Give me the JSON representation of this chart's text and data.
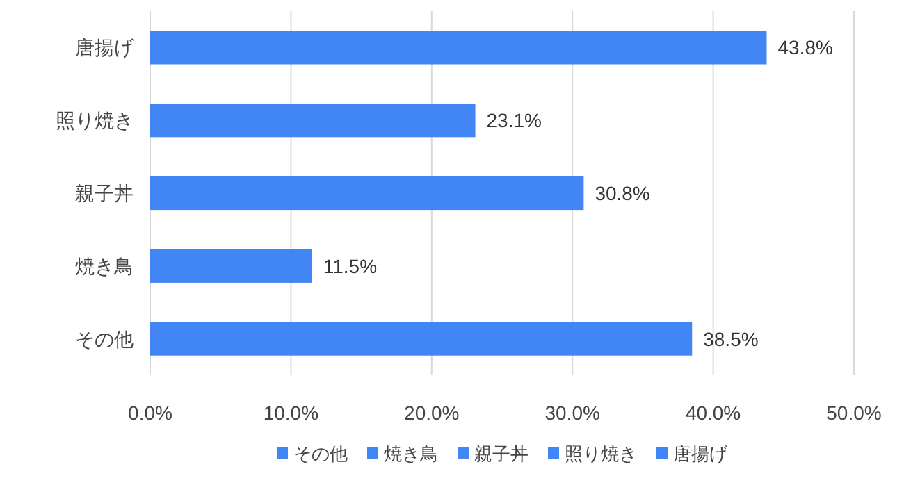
{
  "chart_data": {
    "type": "bar",
    "orientation": "horizontal",
    "categories": [
      "唐揚げ",
      "照り焼き",
      "親子丼",
      "焼き鳥",
      "その他"
    ],
    "series": [
      {
        "name": "その他",
        "color": "#4285f4",
        "values": [
          null,
          null,
          null,
          null,
          38.5
        ],
        "value_labels": [
          null,
          null,
          null,
          null,
          "38.5%"
        ]
      },
      {
        "name": "焼き鳥",
        "color": "#4285f4",
        "values": [
          null,
          null,
          null,
          11.5,
          null
        ],
        "value_labels": [
          null,
          null,
          null,
          "11.5%",
          null
        ]
      },
      {
        "name": "親子丼",
        "color": "#4285f4",
        "values": [
          null,
          null,
          30.8,
          null,
          null
        ],
        "value_labels": [
          null,
          null,
          "30.8%",
          null,
          null
        ]
      },
      {
        "name": "照り焼き",
        "color": "#4285f4",
        "values": [
          null,
          23.1,
          null,
          null,
          null
        ],
        "value_labels": [
          null,
          "23.1%",
          null,
          null,
          null
        ]
      },
      {
        "name": "唐揚げ",
        "color": "#4285f4",
        "values": [
          43.8,
          null,
          null,
          null,
          null
        ],
        "value_labels": [
          "43.8%",
          null,
          null,
          null,
          null
        ]
      }
    ],
    "xlim": [
      0,
      50
    ],
    "xticks": [
      {
        "value": 0,
        "label": "0.0%"
      },
      {
        "value": 10,
        "label": "10.0%"
      },
      {
        "value": 20,
        "label": "20.0%"
      },
      {
        "value": 30,
        "label": "30.0%"
      },
      {
        "value": 40,
        "label": "40.0%"
      },
      {
        "value": 50,
        "label": "50.0%"
      }
    ],
    "grid": "x",
    "legend": "bottom"
  }
}
